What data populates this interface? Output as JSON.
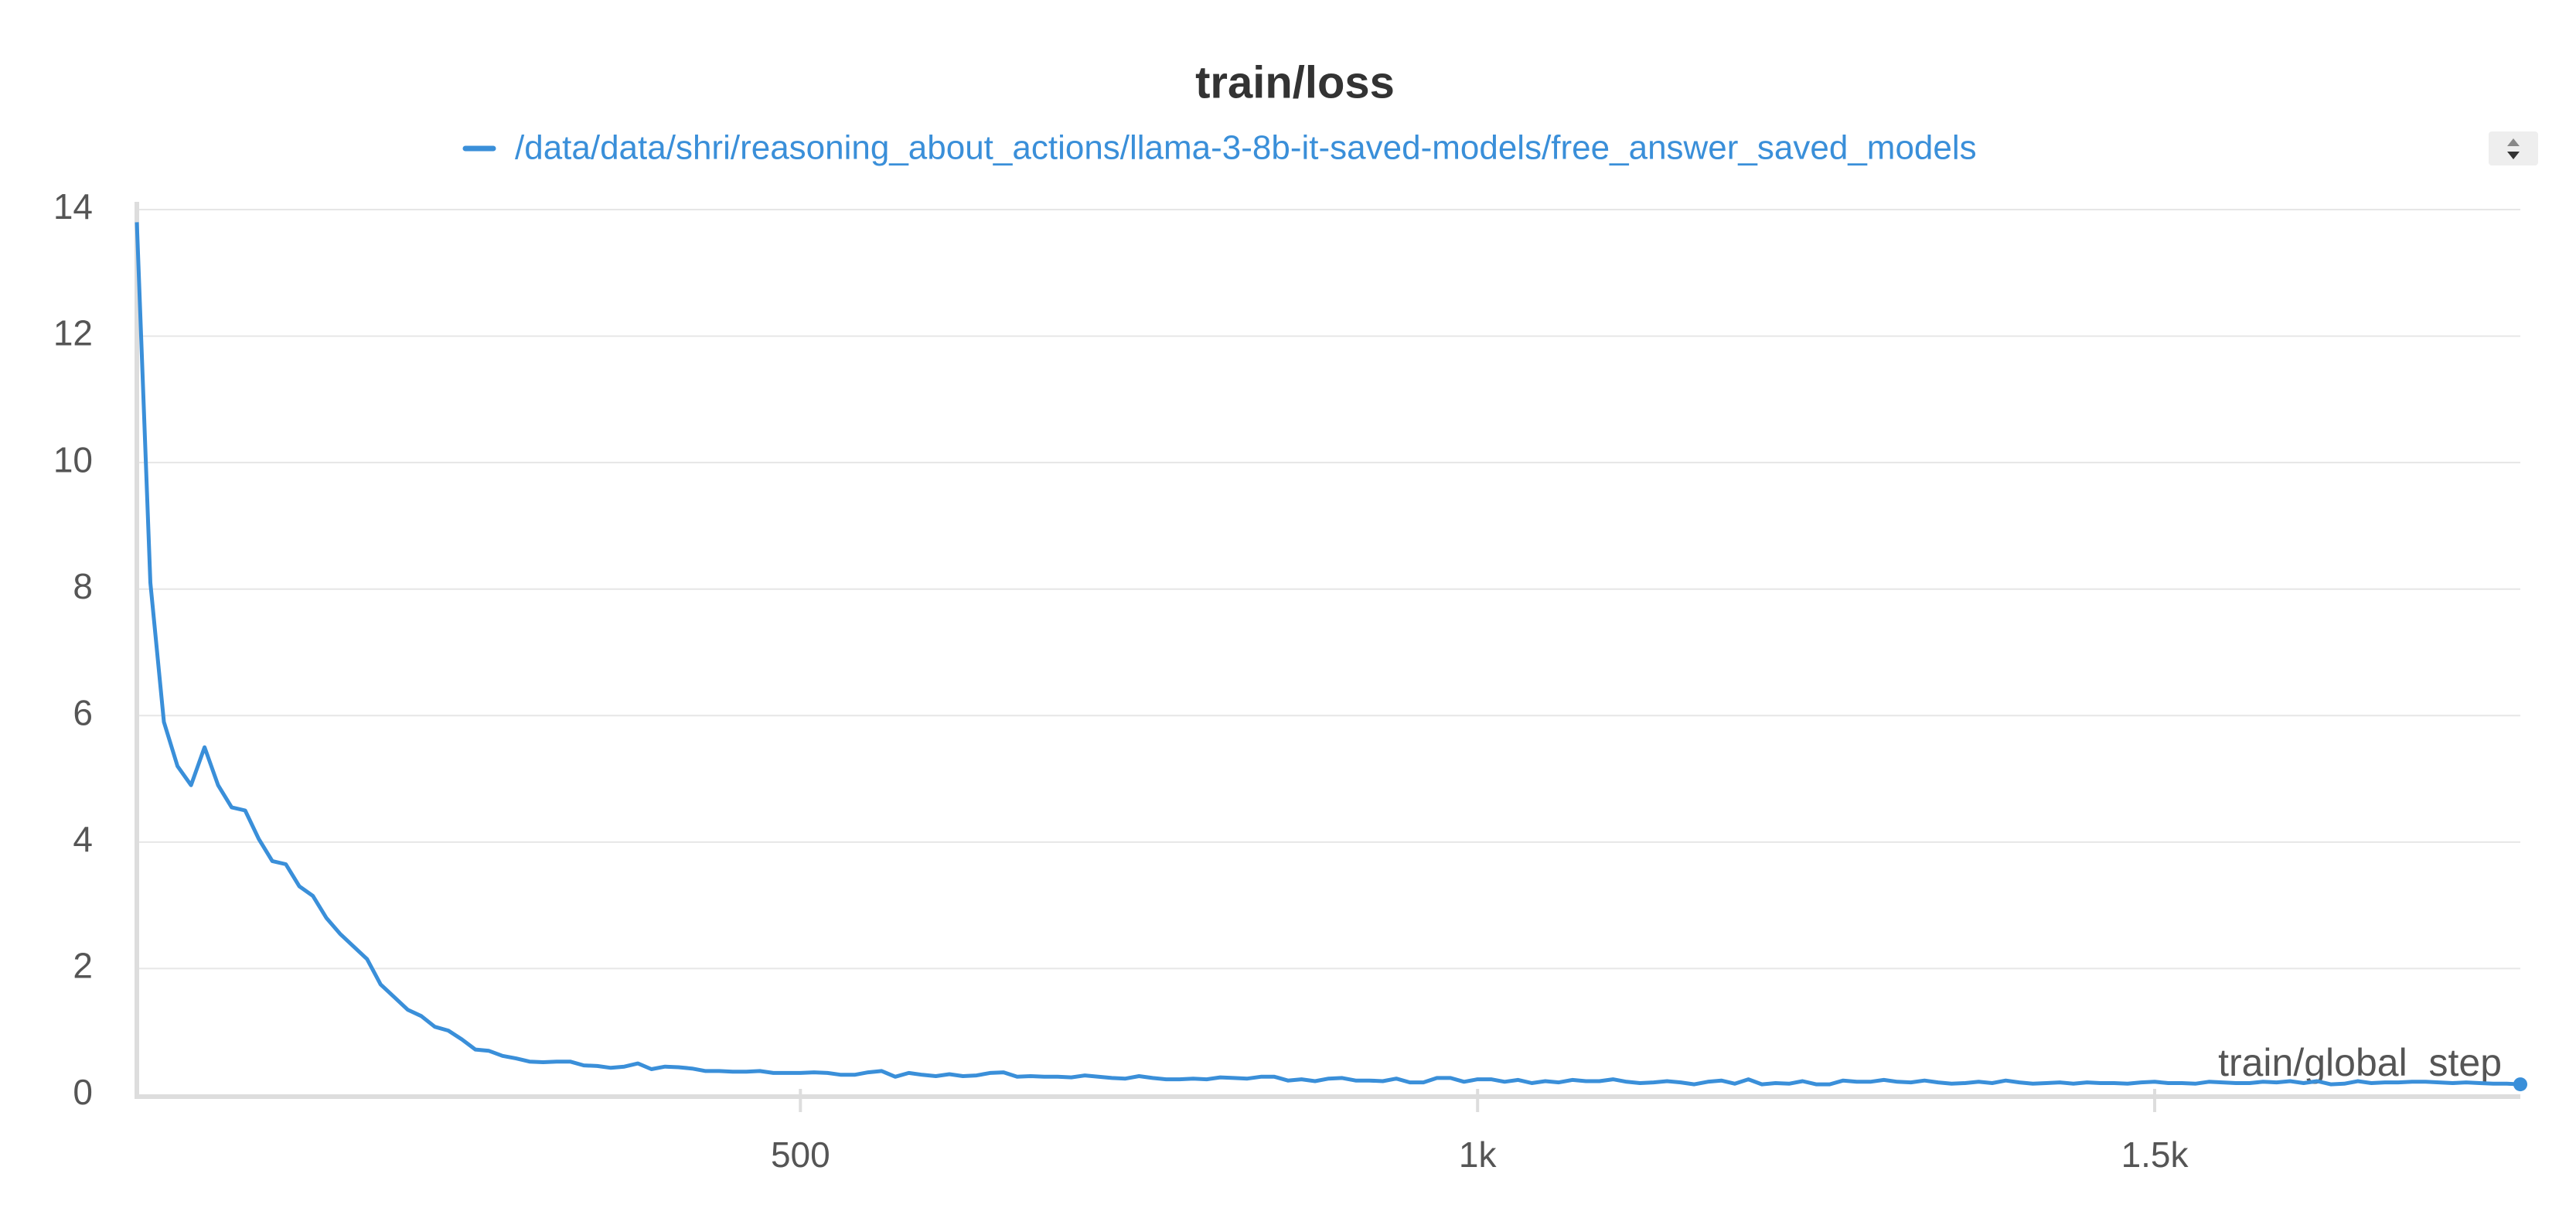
{
  "chart_data": {
    "type": "line",
    "title": "train/loss",
    "x_label": "train/global_step",
    "xlim": [
      10,
      1770
    ],
    "ylim": [
      0,
      14
    ],
    "xticks": [
      500,
      {
        "value": 1000,
        "label": "1k"
      },
      {
        "value": 1500,
        "label": "1.5k"
      }
    ],
    "yticks": [
      0,
      2,
      4,
      6,
      8,
      10,
      12,
      14
    ],
    "grid": true,
    "legend": "top",
    "x": [
      10,
      20,
      30,
      40,
      50,
      60,
      70,
      80,
      90,
      100,
      110,
      120,
      130,
      140,
      150,
      160,
      170,
      180,
      190,
      200,
      210,
      220,
      230,
      240,
      250,
      260,
      270,
      280,
      290,
      300,
      310,
      320,
      330,
      340,
      350,
      360,
      370,
      380,
      390,
      400,
      410,
      420,
      430,
      440,
      450,
      460,
      470,
      480,
      490,
      500,
      510,
      520,
      530,
      540,
      550,
      560,
      570,
      580,
      590,
      600,
      610,
      620,
      630,
      640,
      650,
      660,
      670,
      680,
      690,
      700,
      710,
      720,
      730,
      740,
      750,
      760,
      770,
      780,
      790,
      800,
      810,
      820,
      830,
      840,
      850,
      860,
      870,
      880,
      890,
      900,
      910,
      920,
      930,
      940,
      950,
      960,
      970,
      980,
      990,
      1000,
      1010,
      1020,
      1030,
      1040,
      1050,
      1060,
      1070,
      1080,
      1090,
      1100,
      1110,
      1120,
      1130,
      1140,
      1150,
      1160,
      1170,
      1180,
      1190,
      1200,
      1210,
      1220,
      1230,
      1240,
      1250,
      1260,
      1270,
      1280,
      1290,
      1300,
      1310,
      1320,
      1330,
      1340,
      1350,
      1360,
      1370,
      1380,
      1390,
      1400,
      1410,
      1420,
      1430,
      1440,
      1450,
      1460,
      1470,
      1480,
      1490,
      1500,
      1510,
      1520,
      1530,
      1540,
      1550,
      1560,
      1570,
      1580,
      1590,
      1600,
      1610,
      1620,
      1630,
      1640,
      1650,
      1660,
      1670,
      1680,
      1690,
      1700,
      1710,
      1720,
      1730,
      1740,
      1750,
      1760,
      1770
    ],
    "series": [
      {
        "name": "/data/data/shri/reasoning_about_actions/llama-3-8b-it-saved-models/free_answer_saved_models",
        "color": "#3a8fd9",
        "values": [
          13.8,
          8.1,
          5.9,
          5.2,
          4.9,
          5.5,
          4.9,
          4.55,
          4.5,
          4.05,
          3.7,
          3.65,
          3.3,
          3.15,
          2.8,
          2.55,
          2.35,
          2.15,
          1.75,
          1.55,
          1.35,
          1.25,
          1.08,
          1.02,
          0.88,
          0.72,
          0.7,
          0.62,
          0.58,
          0.53,
          0.52,
          0.53,
          0.53,
          0.47,
          0.46,
          0.43,
          0.45,
          0.5,
          0.41,
          0.45,
          0.44,
          0.42,
          0.38,
          0.38,
          0.37,
          0.37,
          0.38,
          0.35,
          0.35,
          0.35,
          0.36,
          0.35,
          0.32,
          0.32,
          0.36,
          0.38,
          0.29,
          0.35,
          0.32,
          0.3,
          0.33,
          0.3,
          0.31,
          0.35,
          0.36,
          0.29,
          0.3,
          0.29,
          0.29,
          0.28,
          0.31,
          0.29,
          0.27,
          0.26,
          0.3,
          0.27,
          0.25,
          0.25,
          0.26,
          0.25,
          0.28,
          0.27,
          0.26,
          0.29,
          0.29,
          0.23,
          0.25,
          0.22,
          0.26,
          0.27,
          0.23,
          0.23,
          0.22,
          0.26,
          0.2,
          0.2,
          0.27,
          0.27,
          0.21,
          0.25,
          0.25,
          0.21,
          0.24,
          0.19,
          0.22,
          0.2,
          0.24,
          0.22,
          0.22,
          0.25,
          0.21,
          0.19,
          0.2,
          0.22,
          0.2,
          0.17,
          0.21,
          0.23,
          0.18,
          0.25,
          0.17,
          0.19,
          0.18,
          0.22,
          0.17,
          0.17,
          0.23,
          0.21,
          0.21,
          0.24,
          0.21,
          0.2,
          0.23,
          0.2,
          0.18,
          0.19,
          0.21,
          0.19,
          0.23,
          0.2,
          0.18,
          0.19,
          0.2,
          0.18,
          0.2,
          0.19,
          0.19,
          0.18,
          0.2,
          0.21,
          0.19,
          0.19,
          0.18,
          0.21,
          0.2,
          0.19,
          0.19,
          0.21,
          0.2,
          0.22,
          0.19,
          0.22,
          0.17,
          0.18,
          0.22,
          0.19,
          0.2,
          0.2,
          0.21,
          0.21,
          0.2,
          0.19,
          0.2,
          0.19,
          0.18,
          0.18,
          0.17
        ]
      }
    ]
  }
}
